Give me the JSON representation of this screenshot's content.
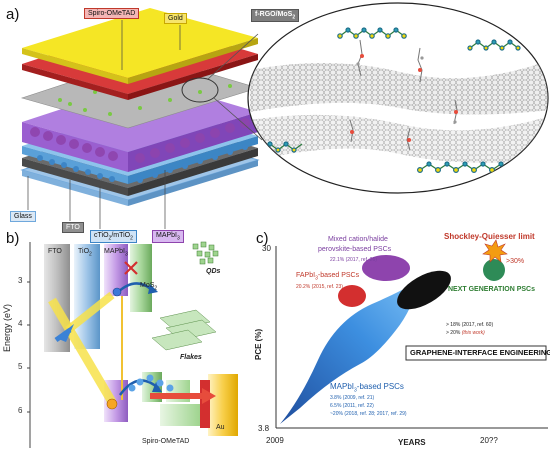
{
  "panel_a": {
    "letter": "a)",
    "labels": {
      "spiro": "Spiro-OMeTAD",
      "gold": "Gold",
      "frgo": "f-RGO/MoS",
      "frgo_sub": "2",
      "glass": "Glass",
      "fto": "FTO",
      "ctio2": "cTiO",
      "ctio2_sub": "2",
      "mtio2": "/mTiO",
      "mtio2_sub": "2",
      "mapbi": "MAPbI",
      "mapbi_sub": "3"
    },
    "colors": {
      "gold": "#f2e21a",
      "spiro": "#c62828",
      "perovskite": "#9b59d0",
      "tio2": "#6fa8dc",
      "fto": "#555555",
      "glass": "#9fc5e8"
    }
  },
  "panel_b": {
    "letter": "b)",
    "ylabel": "Energy (eV)",
    "yticks": [
      "3",
      "4",
      "5",
      "6"
    ],
    "labels": {
      "fto": "FTO",
      "tio2": "TiO",
      "tio2_sub": "2",
      "mapbi": "MAPbI",
      "mapbi_sub": "3",
      "mos2": "MoS",
      "mos2_sub": "2",
      "qds": "QDs",
      "flakes": "Flakes",
      "spiro": "Spiro-OMeTAD",
      "au": "Au"
    }
  },
  "panel_c": {
    "letter": "c)",
    "ylabel": "PCE (%)",
    "y_top": "30",
    "y_bottom": "3.8",
    "xlabel": "YEARS",
    "x_start": "2009",
    "x_end": "20??",
    "sq_limit": "Shockley-Quiesser limit",
    "sq_value": ">30%",
    "next_gen": "NEXT GENERATION PSCs",
    "mixed_title_1": "Mixed cation/halide",
    "mixed_title_2": "perovskite-based PSCs",
    "mixed_val": "22.1% (2017, ref. 26)",
    "fapbi_title": "FAPbI",
    "fapbi_sub": "3",
    "fapbi_suffix": "-based PSCs",
    "fapbi_val": "20.2% (2015, ref. 23)",
    "graphene_1": "> 18% (2017, ref. 60)",
    "graphene_2_prefix": "> 20% ",
    "graphene_2_em": "(this work)",
    "graphene_box": "GRAPHENE-INTERFACE ENGINEERING",
    "mapbi_title": "MAPbI",
    "mapbi_sub": "3",
    "mapbi_suffix": "-based PSCs",
    "mapbi_vals": [
      "3.8% (2009, ref. 21)",
      "6.5% (2011, ref. 22)",
      "~20% (2018, ref. 28; 2017, ref. 29)"
    ]
  }
}
